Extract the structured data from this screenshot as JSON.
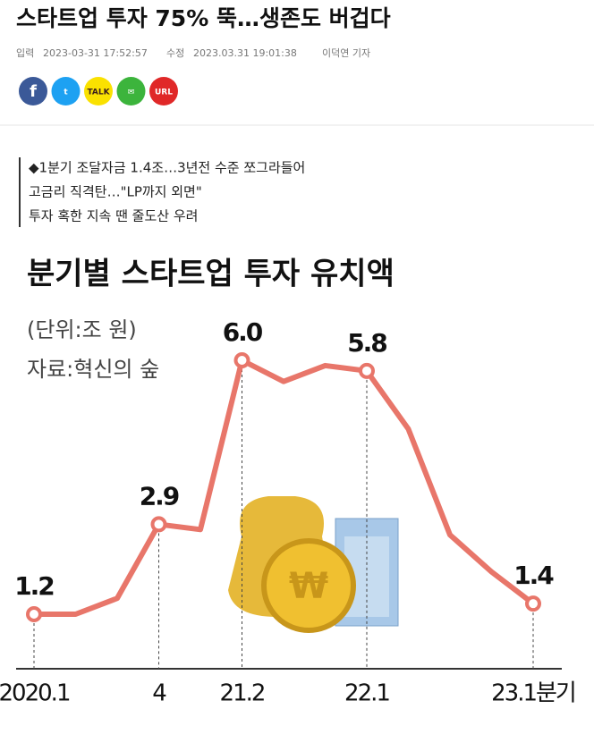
{
  "header": {
    "title": "스타트업 투자 75% 뚝…생존도 버겁다",
    "input_label": "입력",
    "input_time": "2023-03-31 17:52:57",
    "edit_label": "수정",
    "edit_time": "2023.03.31 19:01:38",
    "author": "이덕연 기자"
  },
  "share": {
    "buttons": [
      "f",
      "t",
      "TALK",
      "✉",
      "URL"
    ]
  },
  "summary": {
    "lines": [
      "◆1분기 조달자금 1.4조…3년전 수준 쪼그라들어",
      "고금리 직격탄…\"LP까지 외면\"",
      "투자 혹한 지속 땐 줄도산 우려"
    ]
  },
  "chart_data": {
    "type": "line",
    "title": "분기별 스타트업 투자 유치액",
    "subtitle": "(단위:조 원)",
    "source": "자료:혁신의 숲",
    "categories": [
      "2020.1",
      null,
      null,
      "4",
      null,
      "21.2",
      null,
      null,
      "22.1",
      null,
      null,
      null,
      "23.1분기"
    ],
    "values": [
      1.2,
      1.2,
      1.5,
      2.9,
      2.8,
      6.0,
      5.6,
      5.9,
      5.8,
      4.7,
      2.7,
      2.0,
      1.4
    ],
    "value_labels": [
      "1.2",
      null,
      null,
      "2.9",
      null,
      "6.0",
      null,
      null,
      "5.8",
      null,
      null,
      null,
      "1.4"
    ],
    "color": "#e8766a",
    "ylim": [
      0,
      6
    ]
  }
}
